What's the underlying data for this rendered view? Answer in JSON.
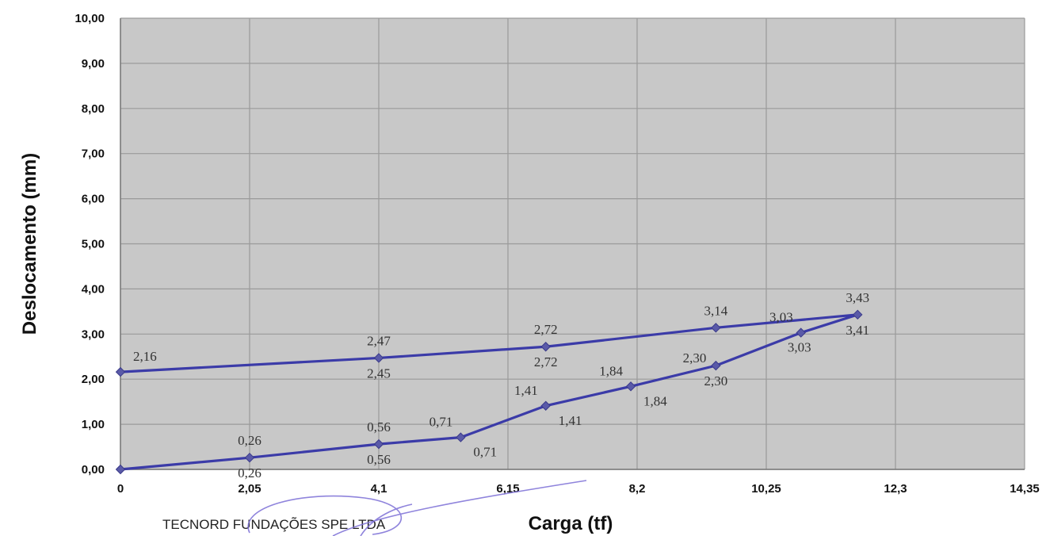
{
  "chart_data": {
    "type": "line",
    "xlabel": "Carga (tf)",
    "ylabel": "Deslocamento (mm)",
    "xlim": [
      0,
      14.35
    ],
    "ylim": [
      0,
      10
    ],
    "x_ticks": [
      "0",
      "2,05",
      "4,1",
      "6,15",
      "8,2",
      "10,25",
      "12,3",
      "14,35"
    ],
    "y_ticks": [
      "0,00",
      "1,00",
      "2,00",
      "3,00",
      "4,00",
      "5,00",
      "6,00",
      "7,00",
      "8,00",
      "9,00",
      "10,00"
    ],
    "grid": true,
    "series": [
      {
        "color": "#3b3ba8",
        "points": [
          {
            "x": 0,
            "y": 0.0
          },
          {
            "x": 2.05,
            "y": 0.26
          },
          {
            "x": 4.1,
            "y": 0.56
          },
          {
            "x": 5.4,
            "y": 0.71
          },
          {
            "x": 6.75,
            "y": 1.41
          },
          {
            "x": 8.1,
            "y": 1.84
          },
          {
            "x": 9.45,
            "y": 2.3
          },
          {
            "x": 10.8,
            "y": 3.03
          },
          {
            "x": 11.7,
            "y": 3.43
          },
          {
            "x": 9.45,
            "y": 3.14
          },
          {
            "x": 6.75,
            "y": 2.72
          },
          {
            "x": 4.1,
            "y": 2.47
          },
          {
            "x": 0,
            "y": 2.16
          }
        ]
      }
    ],
    "annotations": [
      {
        "text": "0,26",
        "x": 2.05,
        "y": 0.26,
        "pos": "above"
      },
      {
        "text": "0,26",
        "x": 2.05,
        "y": 0.26,
        "pos": "below"
      },
      {
        "text": "0,56",
        "x": 4.1,
        "y": 0.56,
        "pos": "above"
      },
      {
        "text": "0,56",
        "x": 4.1,
        "y": 0.56,
        "pos": "below"
      },
      {
        "text": "0,71",
        "x": 5.4,
        "y": 0.71,
        "pos": "above-left"
      },
      {
        "text": "0,71",
        "x": 5.4,
        "y": 0.71,
        "pos": "below-right"
      },
      {
        "text": "1,41",
        "x": 6.75,
        "y": 1.41,
        "pos": "above-left"
      },
      {
        "text": "1,41",
        "x": 6.75,
        "y": 1.41,
        "pos": "below-right"
      },
      {
        "text": "1,84",
        "x": 8.1,
        "y": 1.84,
        "pos": "above-left"
      },
      {
        "text": "1,84",
        "x": 8.1,
        "y": 1.84,
        "pos": "below-right"
      },
      {
        "text": "2,30",
        "x": 9.45,
        "y": 2.3,
        "pos": "left"
      },
      {
        "text": "2,30",
        "x": 9.45,
        "y": 2.3,
        "pos": "below"
      },
      {
        "text": "3,03",
        "x": 10.8,
        "y": 3.03,
        "pos": "above-left"
      },
      {
        "text": "3,03",
        "x": 10.8,
        "y": 3.03,
        "pos": "below-left"
      },
      {
        "text": "3,43",
        "x": 11.7,
        "y": 3.43,
        "pos": "above"
      },
      {
        "text": "3,41",
        "x": 11.7,
        "y": 3.43,
        "pos": "below"
      },
      {
        "text": "3,14",
        "x": 9.45,
        "y": 3.14,
        "pos": "above"
      },
      {
        "text": "2,72",
        "x": 6.75,
        "y": 2.72,
        "pos": "above"
      },
      {
        "text": "2,72",
        "x": 6.75,
        "y": 2.72,
        "pos": "below"
      },
      {
        "text": "2,47",
        "x": 4.1,
        "y": 2.47,
        "pos": "above"
      },
      {
        "text": "2,45",
        "x": 4.1,
        "y": 2.47,
        "pos": "below"
      },
      {
        "text": "2,16",
        "x": 0,
        "y": 2.16,
        "pos": "above-right"
      }
    ]
  },
  "footer": {
    "company": "TECNORD FUNDAÇÕES SPE LTDA"
  },
  "style": {
    "plot_bg": "#c8c8c8",
    "grid_color": "#9a9a9a",
    "line_color": "#3b3ba8",
    "marker_color": "#5a5aa8",
    "signature_color": "#7b6fd6"
  }
}
